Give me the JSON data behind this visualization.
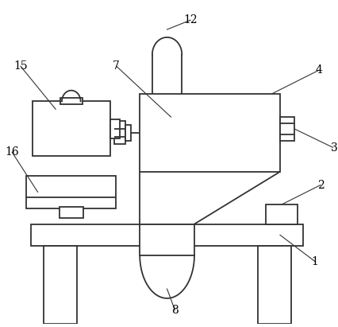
{
  "line_color": "#333333",
  "bg_color": "#ffffff",
  "lw": 1.3,
  "label_fontsize": 10
}
